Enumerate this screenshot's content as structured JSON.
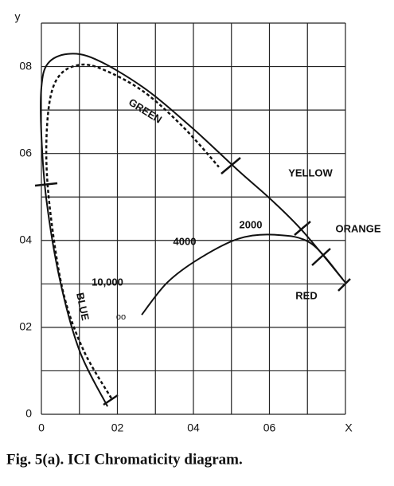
{
  "chart_data": {
    "type": "line",
    "xlabel": "X",
    "ylabel": "y",
    "xlim": [
      0,
      0.8
    ],
    "ylim": [
      0,
      0.9
    ],
    "xticks": [
      0,
      {
        "value": 0.2,
        "label": "02"
      },
      {
        "value": 0.4,
        "label": "04"
      },
      {
        "value": 0.6,
        "label": "06"
      }
    ],
    "yticks": [
      0,
      {
        "value": 0.2,
        "label": "02"
      },
      {
        "value": 0.4,
        "label": "04"
      },
      {
        "value": 0.6,
        "label": "06"
      },
      {
        "value": 0.8,
        "label": "08"
      }
    ],
    "xgrid": [
      0,
      0.1,
      0.2,
      0.3,
      0.4,
      0.5,
      0.6,
      0.7,
      0.8
    ],
    "ygrid": [
      0,
      0.1,
      0.2,
      0.3,
      0.4,
      0.5,
      0.6,
      0.7,
      0.8,
      0.9
    ],
    "grid": true,
    "series": [
      {
        "color": "#111111",
        "style": "solid",
        "x": [
          0.174,
          0.1,
          0.048,
          0.013,
          0.0,
          0.0,
          0.017,
          0.069,
          0.142,
          0.268,
          0.394,
          0.519,
          0.603,
          0.687,
          0.8
        ],
        "y": [
          0.018,
          0.147,
          0.312,
          0.495,
          0.642,
          0.752,
          0.807,
          0.829,
          0.817,
          0.752,
          0.661,
          0.56,
          0.495,
          0.422,
          0.303
        ]
      },
      {
        "color": "#111111",
        "style": "dotted",
        "x": [
          0.184,
          0.111,
          0.059,
          0.027,
          0.013,
          0.021,
          0.048,
          0.101,
          0.163,
          0.268,
          0.373,
          0.467
        ],
        "y": [
          0.037,
          0.147,
          0.275,
          0.44,
          0.587,
          0.716,
          0.78,
          0.804,
          0.793,
          0.743,
          0.661,
          0.569
        ]
      },
      {
        "color": "#111111",
        "style": "solid",
        "x": [
          0.264,
          0.331,
          0.415,
          0.519,
          0.614,
          0.708,
          0.792
        ],
        "y": [
          0.229,
          0.303,
          0.358,
          0.404,
          0.413,
          0.394,
          0.312
        ]
      }
    ],
    "annotations": [
      "GREEN",
      "YELLOW",
      "ORANGE",
      "RED",
      "BLUE",
      "2000",
      "4000",
      "10,000"
    ],
    "caption": "Fig. 5(a). ICI Chromaticity diagram."
  }
}
